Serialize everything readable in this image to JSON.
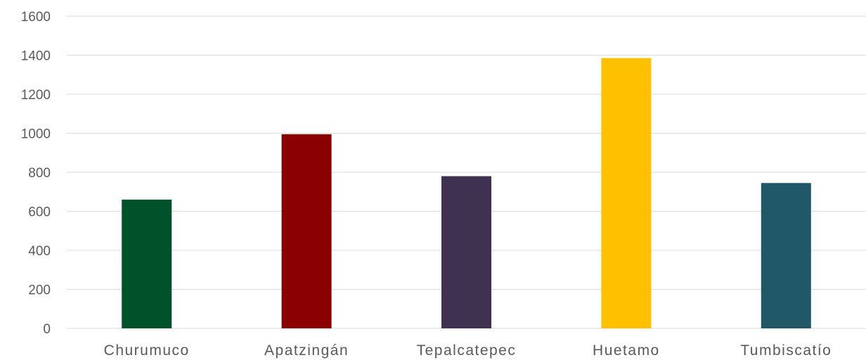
{
  "chart_data": {
    "type": "bar",
    "title": "",
    "xlabel": "",
    "ylabel": "",
    "categories": [
      "Churumuco",
      "Apatzingán",
      "Tepalcatepec",
      "Huetamo",
      "Tumbiscatío"
    ],
    "values": [
      660,
      995,
      780,
      1385,
      745
    ],
    "bar_colors": [
      "#00522a",
      "#8b0000",
      "#3f3150",
      "#ffc000",
      "#215868"
    ],
    "ylim": [
      0,
      1600
    ],
    "yticks": [
      0,
      200,
      400,
      600,
      800,
      1000,
      1200,
      1400,
      1600
    ],
    "ytick_labels": [
      "0",
      "200",
      "400",
      "600",
      "800",
      "1000",
      "1200",
      "1400",
      "1600"
    ],
    "grid": true,
    "legend": "none"
  }
}
